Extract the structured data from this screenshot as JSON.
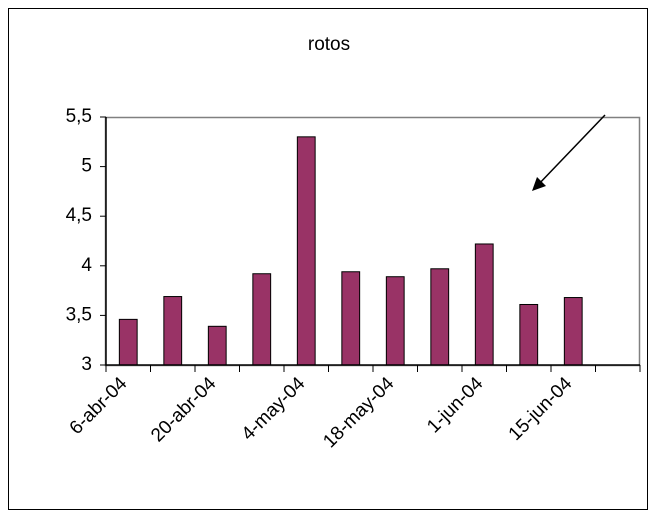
{
  "chart_data": {
    "type": "bar",
    "title": "rotos",
    "categories": [
      "6-abr-04",
      null,
      "20-abr-04",
      null,
      "4-may-04",
      null,
      "18-may-04",
      null,
      "1-jun-04",
      null,
      "15-jun-04",
      null
    ],
    "values": [
      3.46,
      3.69,
      3.39,
      3.92,
      5.3,
      3.94,
      3.89,
      3.97,
      4.22,
      3.61,
      3.68,
      null
    ],
    "color": "#993366",
    "ylim": [
      3,
      5.5
    ],
    "yticks": [
      3,
      {
        "value": 3.5,
        "label": "3,5"
      },
      4,
      {
        "value": 4.5,
        "label": "4,5"
      },
      5,
      {
        "value": 5.5,
        "label": "5,5"
      }
    ],
    "grid": false
  }
}
